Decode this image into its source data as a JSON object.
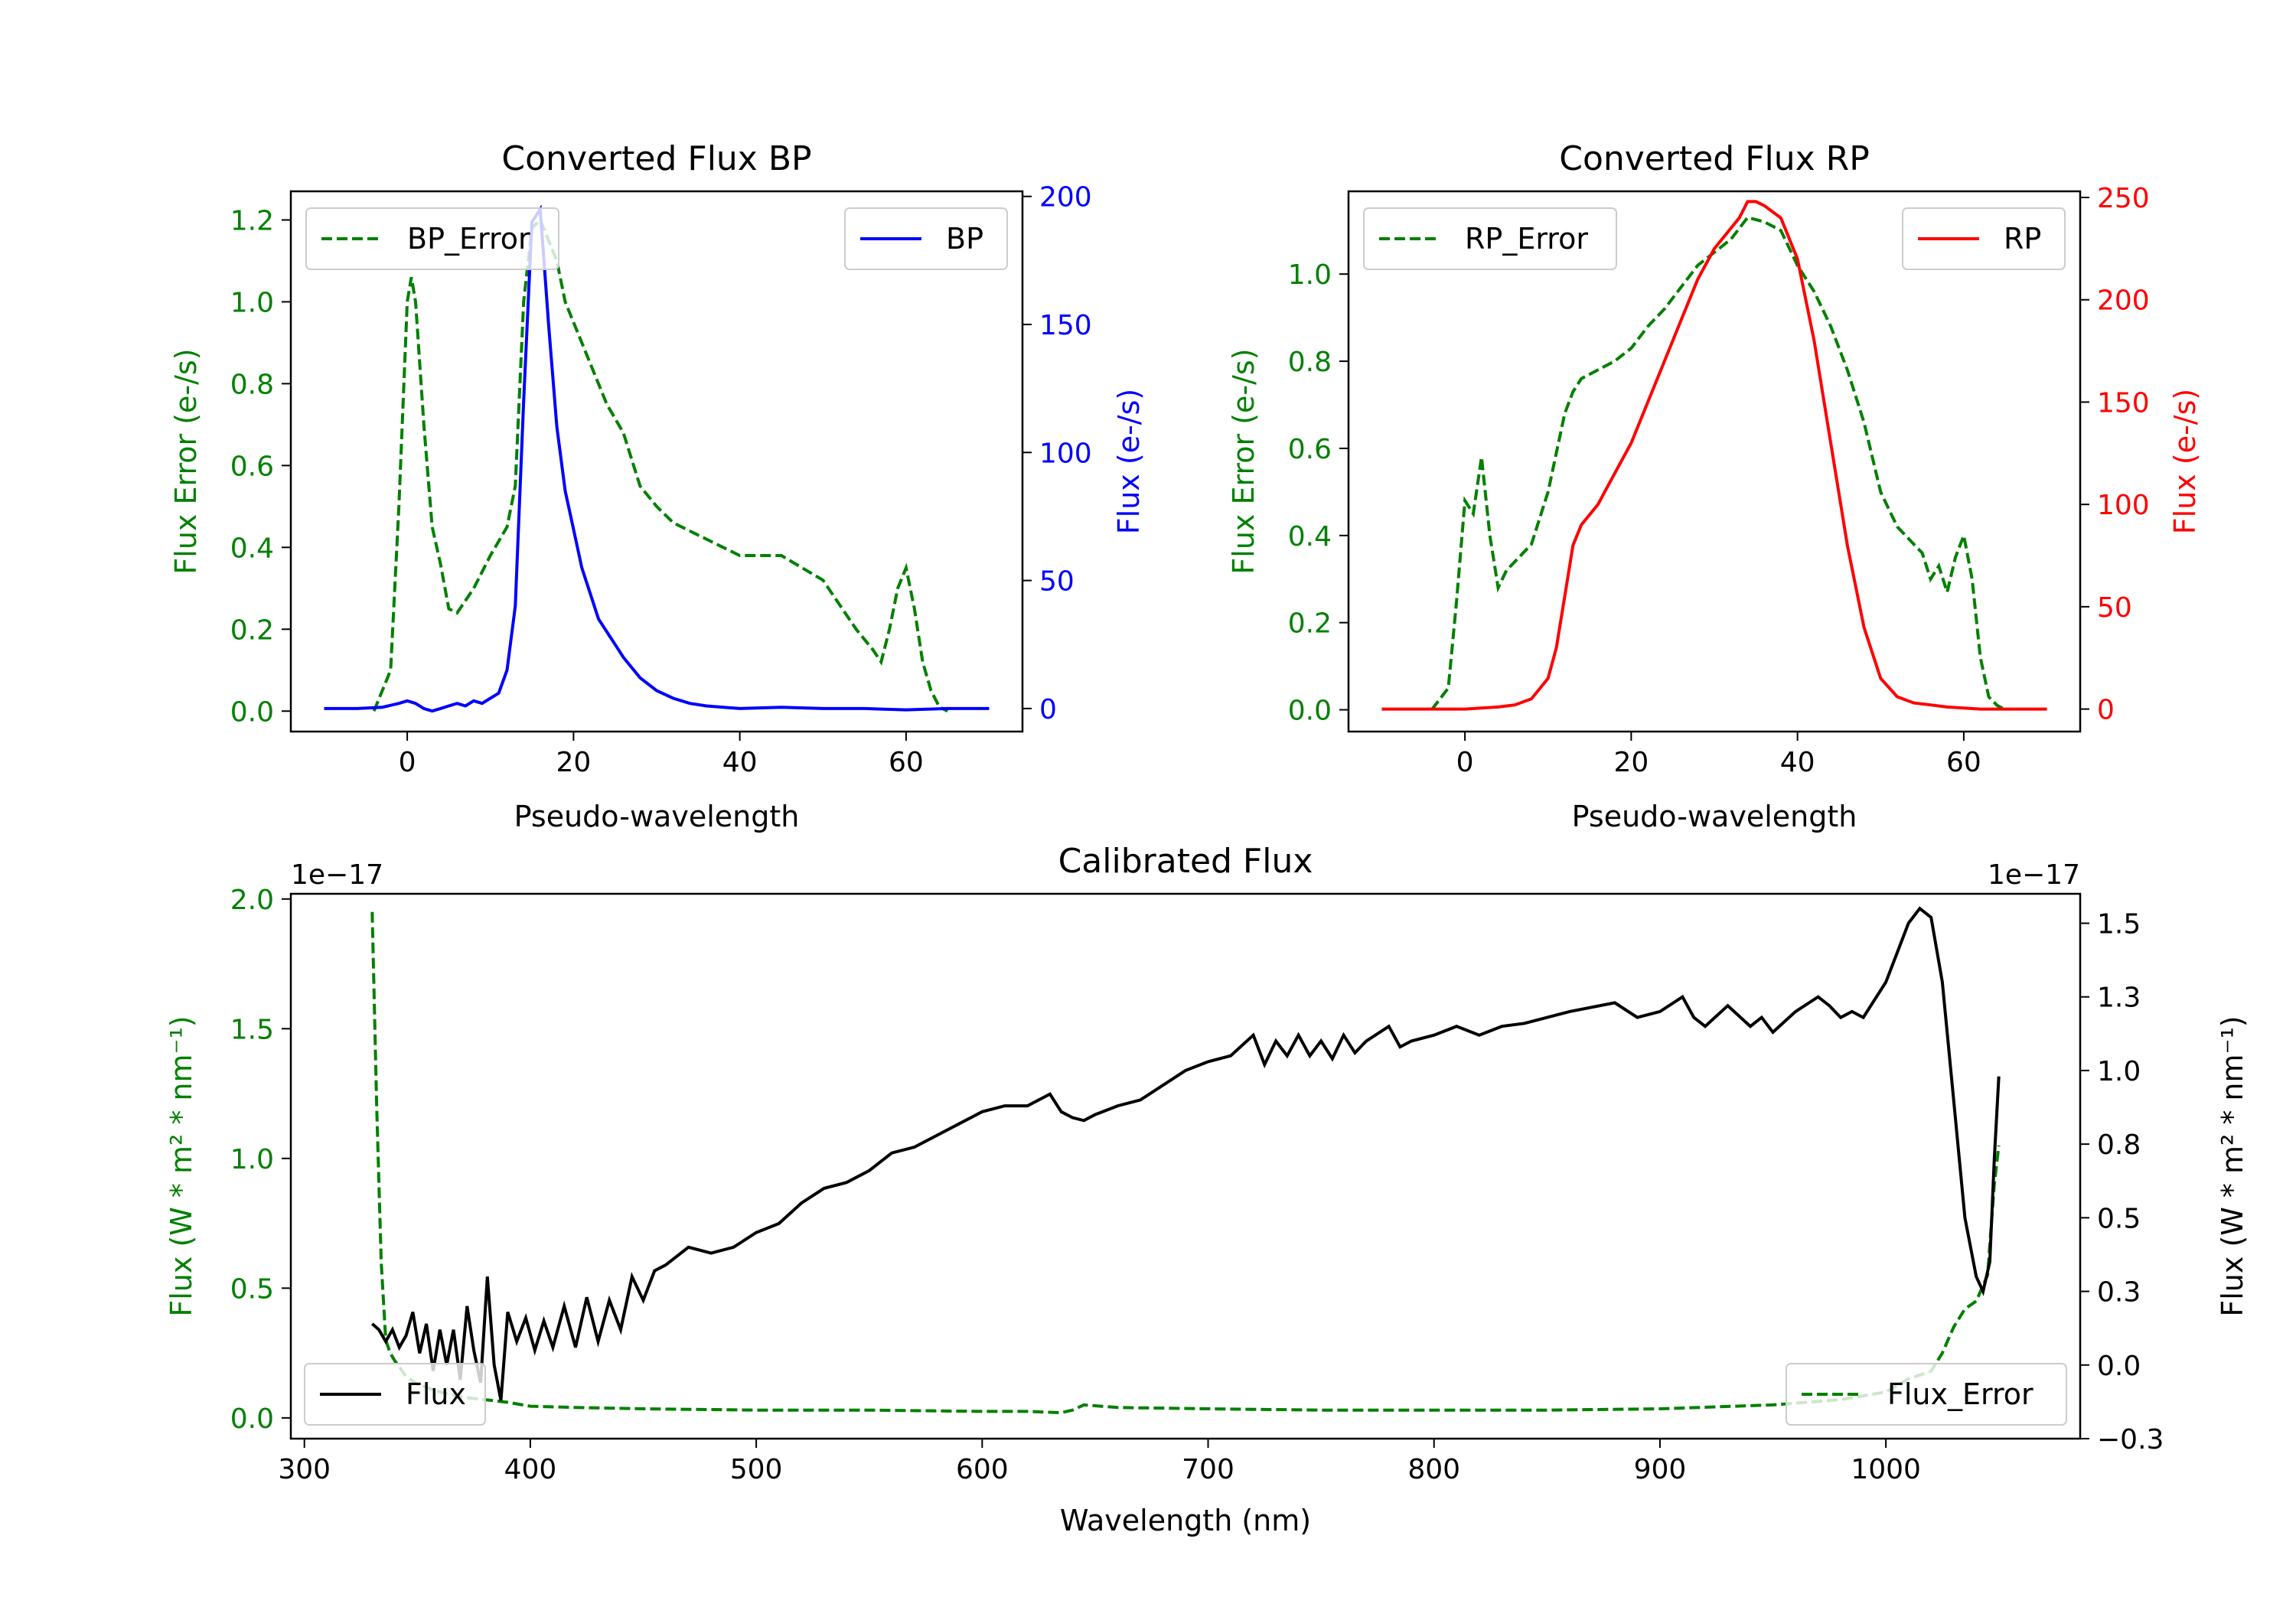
{
  "colors": {
    "green": "#008000",
    "blue": "#0000ff",
    "red": "#ff0000",
    "black": "#000000"
  },
  "chart_data": [
    {
      "type": "line",
      "title": "Converted Flux BP",
      "xlabel": "Pseudo-wavelength",
      "ylabel_left": "Flux Error (e-/s)",
      "ylabel_right": "Flux (e-/s)",
      "xlim": [
        -14,
        74
      ],
      "ylim_left": [
        -0.05,
        1.27
      ],
      "ylim_right": [
        -9,
        202
      ],
      "x_ticks": [
        0,
        20,
        40,
        60
      ],
      "y_ticks_left": [
        0.0,
        0.2,
        0.4,
        0.6,
        0.8,
        1.0,
        1.2
      ],
      "y_ticks_right": [
        0,
        50,
        100,
        150,
        200
      ],
      "legend_left": "BP_Error",
      "legend_right": "BP",
      "series": [
        {
          "name": "BP_Error",
          "axis": "left",
          "style": "dashed",
          "color": "#008000",
          "x": [
            -4,
            -2,
            -1,
            0,
            0.5,
            1,
            2,
            3,
            4,
            5,
            6,
            8,
            10,
            12,
            13,
            14,
            15,
            16,
            17,
            18,
            19,
            20,
            22,
            24,
            26,
            28,
            30,
            32,
            35,
            38,
            40,
            45,
            50,
            52,
            54,
            56,
            57,
            58,
            59,
            60,
            61,
            62,
            63,
            64,
            65
          ],
          "values": [
            0,
            0.1,
            0.5,
            1.0,
            1.06,
            1.0,
            0.7,
            0.45,
            0.36,
            0.25,
            0.24,
            0.3,
            0.38,
            0.45,
            0.55,
            1.0,
            1.18,
            1.2,
            1.15,
            1.1,
            1.0,
            0.95,
            0.85,
            0.75,
            0.68,
            0.55,
            0.5,
            0.46,
            0.43,
            0.4,
            0.38,
            0.38,
            0.32,
            0.26,
            0.2,
            0.15,
            0.12,
            0.2,
            0.3,
            0.35,
            0.25,
            0.12,
            0.05,
            0.01,
            0
          ]
        },
        {
          "name": "BP",
          "axis": "right",
          "style": "solid",
          "color": "#0000ff",
          "x": [
            -10,
            -6,
            -3,
            -1,
            0,
            1,
            2,
            3,
            4,
            5,
            6,
            7,
            8,
            9,
            10,
            11,
            12,
            13,
            14,
            15,
            16,
            17,
            18,
            19,
            20,
            21,
            22,
            23,
            24,
            25,
            26,
            28,
            30,
            32,
            34,
            36,
            38,
            40,
            45,
            50,
            55,
            60,
            65,
            70
          ],
          "values": [
            0,
            0,
            0.5,
            2,
            3,
            2,
            0,
            -1,
            0,
            1,
            2,
            1,
            3,
            2,
            4,
            6,
            15,
            40,
            120,
            190,
            195,
            150,
            110,
            85,
            70,
            55,
            45,
            35,
            30,
            25,
            20,
            12,
            7,
            4,
            2,
            1,
            0.5,
            0,
            0.5,
            0,
            0,
            -0.5,
            0,
            0
          ]
        }
      ]
    },
    {
      "type": "line",
      "title": "Converted Flux RP",
      "xlabel": "Pseudo-wavelength",
      "ylabel_left": "Flux Error (e-/s)",
      "ylabel_right": "Flux (e-/s)",
      "xlim": [
        -14,
        74
      ],
      "ylim_left": [
        -0.05,
        1.19
      ],
      "ylim_right": [
        -11,
        253
      ],
      "x_ticks": [
        0,
        20,
        40,
        60
      ],
      "y_ticks_left": [
        0.0,
        0.2,
        0.4,
        0.6,
        0.8,
        1.0
      ],
      "y_ticks_right": [
        0,
        50,
        100,
        150,
        200,
        250
      ],
      "legend_left": "RP_Error",
      "legend_right": "RP",
      "series": [
        {
          "name": "RP_Error",
          "axis": "left",
          "style": "dashed",
          "color": "#008000",
          "x": [
            -4,
            -2,
            -1,
            0,
            1,
            2,
            3,
            4,
            5,
            6,
            8,
            10,
            12,
            13,
            14,
            15,
            16,
            18,
            20,
            22,
            24,
            26,
            28,
            30,
            32,
            34,
            36,
            38,
            40,
            42,
            44,
            46,
            48,
            50,
            52,
            54,
            55,
            56,
            57,
            58,
            59,
            60,
            61,
            62,
            63,
            64,
            65
          ],
          "values": [
            0,
            0.05,
            0.25,
            0.48,
            0.45,
            0.58,
            0.4,
            0.28,
            0.32,
            0.34,
            0.38,
            0.5,
            0.68,
            0.73,
            0.76,
            0.77,
            0.78,
            0.8,
            0.83,
            0.88,
            0.92,
            0.97,
            1.02,
            1.05,
            1.08,
            1.13,
            1.12,
            1.1,
            1.02,
            0.96,
            0.88,
            0.78,
            0.66,
            0.5,
            0.42,
            0.38,
            0.36,
            0.3,
            0.33,
            0.27,
            0.35,
            0.4,
            0.3,
            0.12,
            0.03,
            0.01,
            0
          ]
        },
        {
          "name": "RP",
          "axis": "right",
          "style": "solid",
          "color": "#ff0000",
          "x": [
            -10,
            -4,
            0,
            4,
            6,
            8,
            10,
            11,
            12,
            13,
            14,
            16,
            18,
            20,
            22,
            24,
            26,
            28,
            30,
            32,
            33,
            34,
            35,
            36,
            38,
            40,
            42,
            44,
            46,
            48,
            50,
            52,
            54,
            56,
            58,
            60,
            62,
            64,
            66,
            70
          ],
          "values": [
            0,
            0,
            0,
            1,
            2,
            5,
            15,
            30,
            55,
            80,
            90,
            100,
            115,
            130,
            150,
            170,
            190,
            210,
            225,
            235,
            240,
            248,
            248,
            246,
            240,
            220,
            180,
            130,
            80,
            40,
            15,
            6,
            3,
            2,
            1,
            0.5,
            0,
            0,
            0,
            0
          ]
        }
      ]
    },
    {
      "type": "line",
      "title": "Calibrated Flux",
      "xlabel": "Wavelength (nm)",
      "ylabel_left": "Flux (W * m² * nm⁻¹)",
      "ylabel_right": "Flux (W * m² * nm⁻¹)",
      "offset_left": "1e−17",
      "offset_right": "1e−17",
      "xlim": [
        294,
        1086
      ],
      "ylim_left": [
        -0.08,
        2.02
      ],
      "ylim_right": [
        -0.25,
        1.6
      ],
      "x_ticks": [
        300,
        400,
        500,
        600,
        700,
        800,
        900,
        1000
      ],
      "y_ticks_left": [
        0.0,
        0.5,
        1.0,
        1.5,
        2.0
      ],
      "y_ticks_right": [
        -0.25,
        0.0,
        0.25,
        0.5,
        0.75,
        1.0,
        1.25,
        1.5
      ],
      "legend_left": "Flux",
      "legend_right": "Flux_Error",
      "series": [
        {
          "name": "Flux_Error",
          "axis": "left",
          "style": "dashed",
          "color": "#008000",
          "x": [
            330,
            332,
            334,
            336,
            338,
            340,
            345,
            350,
            360,
            370,
            380,
            390,
            400,
            420,
            450,
            500,
            550,
            600,
            620,
            635,
            640,
            645,
            660,
            700,
            750,
            800,
            850,
            900,
            950,
            980,
            1000,
            1010,
            1020,
            1025,
            1030,
            1035,
            1040,
            1045,
            1048,
            1050
          ],
          "values": [
            1.95,
            1.2,
            0.6,
            0.3,
            0.25,
            0.22,
            0.16,
            0.13,
            0.1,
            0.08,
            0.07,
            0.06,
            0.045,
            0.04,
            0.035,
            0.03,
            0.03,
            0.025,
            0.025,
            0.02,
            0.03,
            0.05,
            0.04,
            0.035,
            0.03,
            0.03,
            0.03,
            0.035,
            0.05,
            0.07,
            0.1,
            0.15,
            0.18,
            0.25,
            0.35,
            0.42,
            0.45,
            0.55,
            0.9,
            1.05
          ]
        },
        {
          "name": "Flux",
          "axis": "right",
          "style": "solid",
          "color": "#000000",
          "x": [
            330,
            333,
            336,
            339,
            342,
            345,
            348,
            351,
            354,
            357,
            360,
            363,
            366,
            369,
            372,
            375,
            378,
            381,
            384,
            387,
            390,
            394,
            398,
            402,
            406,
            410,
            415,
            420,
            425,
            430,
            435,
            440,
            445,
            450,
            455,
            460,
            470,
            480,
            490,
            500,
            510,
            520,
            530,
            540,
            550,
            560,
            570,
            580,
            590,
            600,
            610,
            620,
            630,
            635,
            640,
            645,
            650,
            660,
            670,
            680,
            690,
            700,
            710,
            720,
            725,
            730,
            735,
            740,
            745,
            750,
            755,
            760,
            765,
            770,
            780,
            785,
            790,
            800,
            810,
            820,
            830,
            840,
            860,
            880,
            890,
            900,
            910,
            915,
            920,
            930,
            940,
            945,
            950,
            960,
            970,
            975,
            980,
            985,
            990,
            1000,
            1005,
            1010,
            1015,
            1020,
            1025,
            1030,
            1035,
            1040,
            1043,
            1046,
            1048,
            1050
          ],
          "values": [
            0.14,
            0.12,
            0.08,
            0.12,
            0.06,
            0.1,
            0.18,
            0.04,
            0.14,
            -0.02,
            0.12,
            0.0,
            0.12,
            -0.05,
            0.2,
            0.05,
            -0.06,
            0.3,
            0.0,
            -0.12,
            0.18,
            0.08,
            0.16,
            0.05,
            0.15,
            0.06,
            0.2,
            0.06,
            0.23,
            0.08,
            0.22,
            0.12,
            0.3,
            0.22,
            0.32,
            0.34,
            0.4,
            0.38,
            0.4,
            0.45,
            0.48,
            0.55,
            0.6,
            0.62,
            0.66,
            0.72,
            0.74,
            0.78,
            0.82,
            0.86,
            0.88,
            0.88,
            0.92,
            0.86,
            0.84,
            0.83,
            0.85,
            0.88,
            0.9,
            0.95,
            1.0,
            1.03,
            1.05,
            1.12,
            1.02,
            1.1,
            1.05,
            1.12,
            1.05,
            1.1,
            1.04,
            1.12,
            1.06,
            1.1,
            1.15,
            1.08,
            1.1,
            1.12,
            1.15,
            1.12,
            1.15,
            1.16,
            1.2,
            1.23,
            1.18,
            1.2,
            1.25,
            1.18,
            1.15,
            1.22,
            1.15,
            1.18,
            1.13,
            1.2,
            1.25,
            1.22,
            1.18,
            1.2,
            1.18,
            1.3,
            1.4,
            1.5,
            1.55,
            1.52,
            1.3,
            0.9,
            0.5,
            0.3,
            0.25,
            0.35,
            0.7,
            0.98
          ]
        }
      ]
    }
  ]
}
